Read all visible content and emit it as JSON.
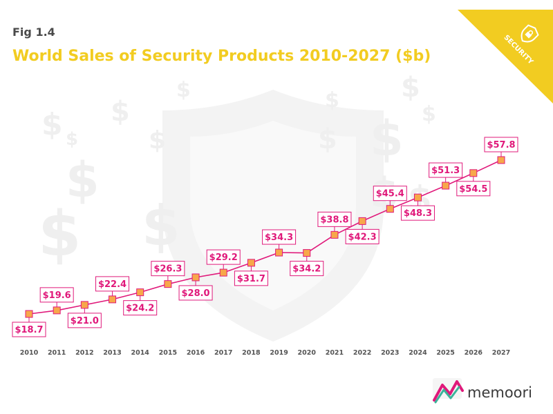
{
  "fig_label": "Fig 1.4",
  "badge_text": "SECURITY",
  "brand_name": "memoori",
  "colors": {
    "title": "#f2cc21",
    "line": "#e0187a",
    "marker_fill": "#f7a84a",
    "label_text": "#e0187a",
    "badge_bg": "#f2cc21"
  },
  "chart_data": {
    "type": "line",
    "title": "World Sales of Security Products 2010-2027 ($b)",
    "xlabel": "",
    "ylabel": "",
    "x": [
      "2010",
      "2011",
      "2012",
      "2013",
      "2014",
      "2015",
      "2016",
      "2017",
      "2018",
      "2019",
      "2020",
      "2021",
      "2022",
      "2023",
      "2024",
      "2025",
      "2026",
      "2027"
    ],
    "values": [
      18.7,
      19.6,
      21.0,
      22.4,
      24.2,
      26.3,
      28.0,
      29.2,
      31.7,
      34.3,
      34.2,
      38.8,
      42.3,
      45.4,
      48.3,
      51.3,
      54.5,
      57.8
    ],
    "data_labels": [
      "$18.7",
      "$19.6",
      "$21.0",
      "$22.4",
      "$24.2",
      "$26.3",
      "$28.0",
      "$29.2",
      "$31.7",
      "$34.3",
      "$34.2",
      "$38.8",
      "$42.3",
      "$45.4",
      "$48.3",
      "$51.3",
      "$54.5",
      "$57.8"
    ],
    "label_position": [
      "below",
      "above",
      "below",
      "above",
      "below",
      "above",
      "below",
      "above",
      "below",
      "above",
      "below",
      "above",
      "below",
      "above",
      "below",
      "above",
      "below",
      "above"
    ],
    "grid": false,
    "legend": "none"
  }
}
